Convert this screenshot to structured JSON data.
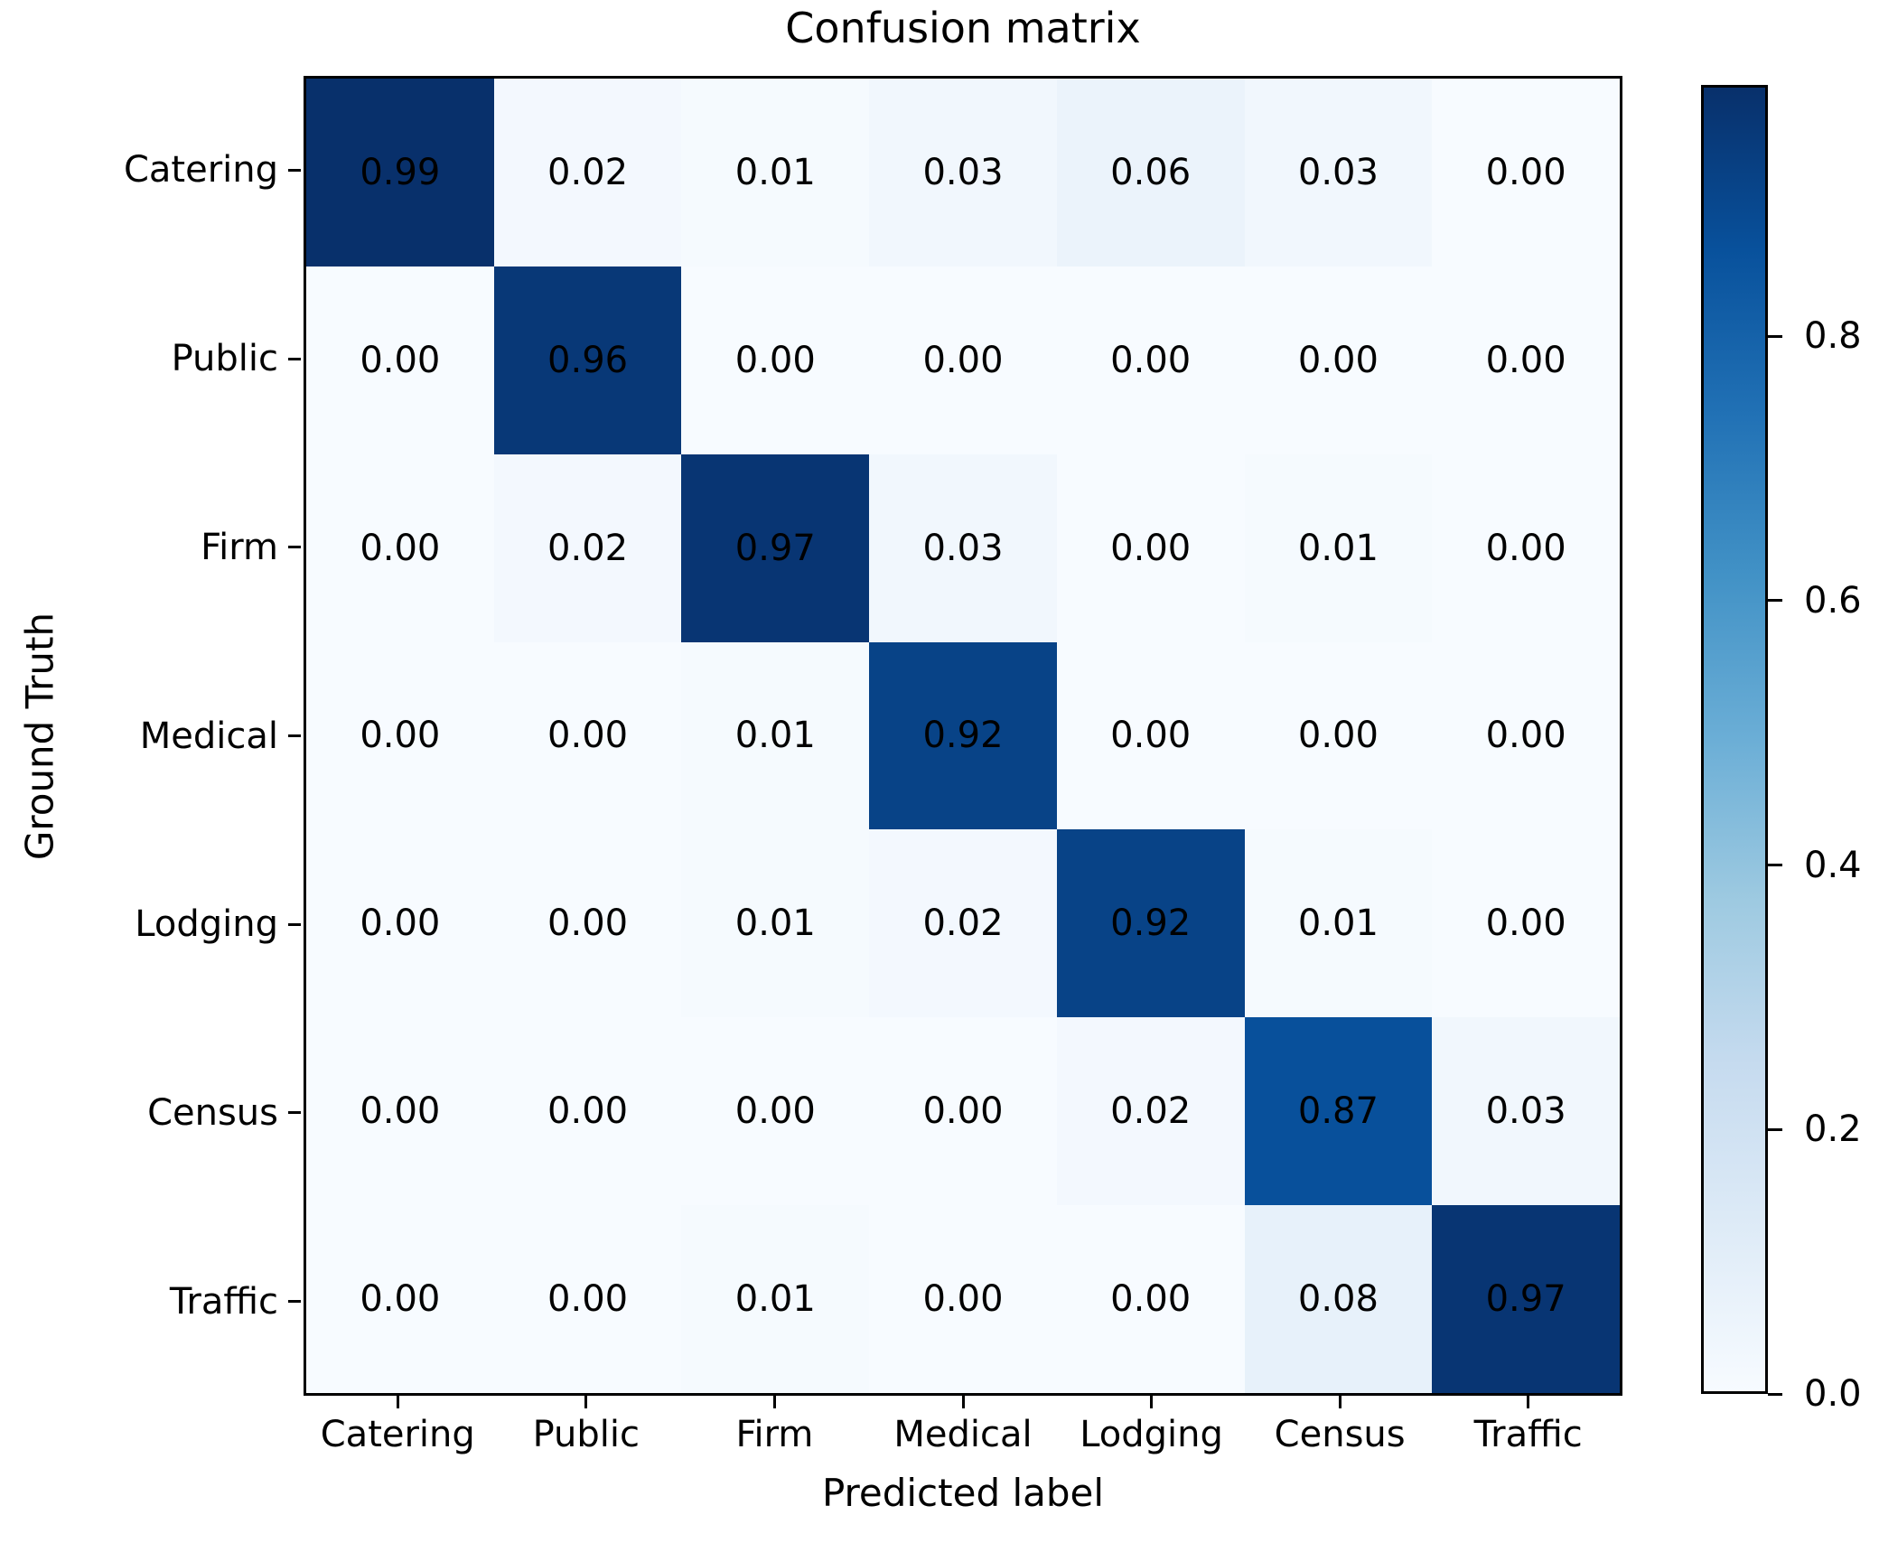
{
  "title": "Confusion matrix",
  "axes": {
    "x_label": "Predicted label",
    "y_label": "Ground Truth"
  },
  "chart_data": {
    "type": "heatmap",
    "title": "Confusion matrix",
    "xlabel": "Predicted label",
    "ylabel": "Ground Truth",
    "x_categories": [
      "Catering",
      "Public",
      "Firm",
      "Medical",
      "Lodging",
      "Census",
      "Traffic"
    ],
    "y_categories": [
      "Catering",
      "Public",
      "Firm",
      "Medical",
      "Lodging",
      "Census",
      "Traffic"
    ],
    "matrix": [
      [
        0.99,
        0.02,
        0.01,
        0.03,
        0.06,
        0.03,
        0.0
      ],
      [
        0.0,
        0.96,
        0.0,
        0.0,
        0.0,
        0.0,
        0.0
      ],
      [
        0.0,
        0.02,
        0.97,
        0.03,
        0.0,
        0.01,
        0.0
      ],
      [
        0.0,
        0.0,
        0.01,
        0.92,
        0.0,
        0.0,
        0.0
      ],
      [
        0.0,
        0.0,
        0.01,
        0.02,
        0.92,
        0.01,
        0.0
      ],
      [
        0.0,
        0.0,
        0.0,
        0.0,
        0.02,
        0.87,
        0.03
      ],
      [
        0.0,
        0.0,
        0.01,
        0.0,
        0.0,
        0.08,
        0.97
      ]
    ],
    "value_decimals": 2,
    "cell_text_color": "#000000",
    "colormap": "Blues",
    "vmin": 0.0,
    "vmax": 0.99,
    "grid": false,
    "colorbar": {
      "position": "right",
      "ticks": [
        0.0,
        0.2,
        0.4,
        0.6,
        0.8
      ],
      "tick_labels": [
        "0.0",
        "0.2",
        "0.4",
        "0.6",
        "0.8"
      ]
    },
    "colormap_anchors": [
      {
        "pos": 0.0,
        "color": "#f7fbff"
      },
      {
        "pos": 0.125,
        "color": "#deebf7"
      },
      {
        "pos": 0.25,
        "color": "#c6dbef"
      },
      {
        "pos": 0.375,
        "color": "#9ecae1"
      },
      {
        "pos": 0.5,
        "color": "#6baed6"
      },
      {
        "pos": 0.625,
        "color": "#4292c6"
      },
      {
        "pos": 0.75,
        "color": "#2171b5"
      },
      {
        "pos": 0.875,
        "color": "#08519c"
      },
      {
        "pos": 1.0,
        "color": "#08306b"
      }
    ]
  }
}
